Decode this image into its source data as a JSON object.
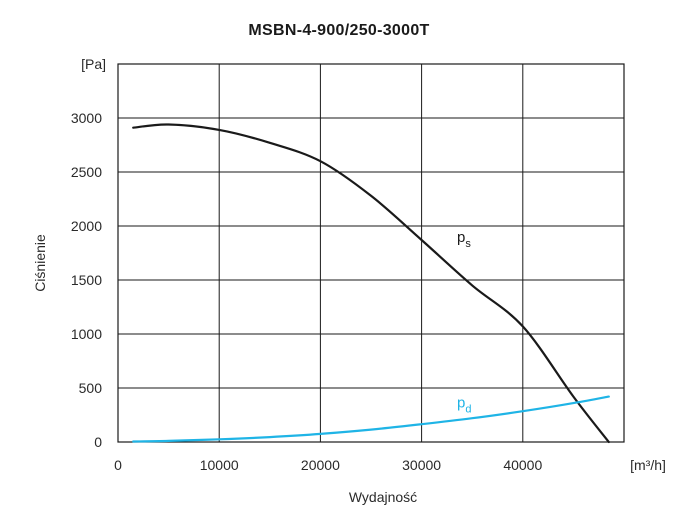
{
  "chart_data": {
    "type": "line",
    "title": "MSBN-4-900/250-3000T",
    "ylabel": "Ciśnienie",
    "xlabel": "Wydajność",
    "y_unit": "[Pa]",
    "x_unit": "[m³/h]",
    "xlim": [
      0,
      50000
    ],
    "ylim": [
      0,
      3500
    ],
    "x_ticks": [
      "0",
      "10000",
      "20000",
      "30000",
      "40000"
    ],
    "x_tick_values": [
      0,
      10000,
      20000,
      30000,
      40000
    ],
    "y_ticks": [
      "0",
      "500",
      "1000",
      "1500",
      "2000",
      "2500",
      "3000"
    ],
    "y_tick_values": [
      0,
      500,
      1000,
      1500,
      2000,
      2500,
      3000
    ],
    "grid": true,
    "series": [
      {
        "name": "ps",
        "label_main": "p",
        "label_sub": "s",
        "color": "#1a1a1a",
        "label_at": [
          33500,
          1850
        ],
        "x": [
          1500,
          5000,
          10000,
          15000,
          20000,
          25000,
          30000,
          35000,
          40000,
          45000,
          48500
        ],
        "y": [
          2910,
          2940,
          2890,
          2770,
          2600,
          2280,
          1870,
          1450,
          1070,
          420,
          0
        ]
      },
      {
        "name": "pd",
        "label_main": "p",
        "label_sub": "d",
        "color": "#1fb4e6",
        "label_at": [
          33500,
          320
        ],
        "x": [
          1500,
          5000,
          10000,
          15000,
          20000,
          25000,
          30000,
          35000,
          40000,
          45000,
          48500
        ],
        "y": [
          5,
          10,
          25,
          45,
          75,
          115,
          165,
          220,
          285,
          360,
          420
        ]
      }
    ]
  }
}
